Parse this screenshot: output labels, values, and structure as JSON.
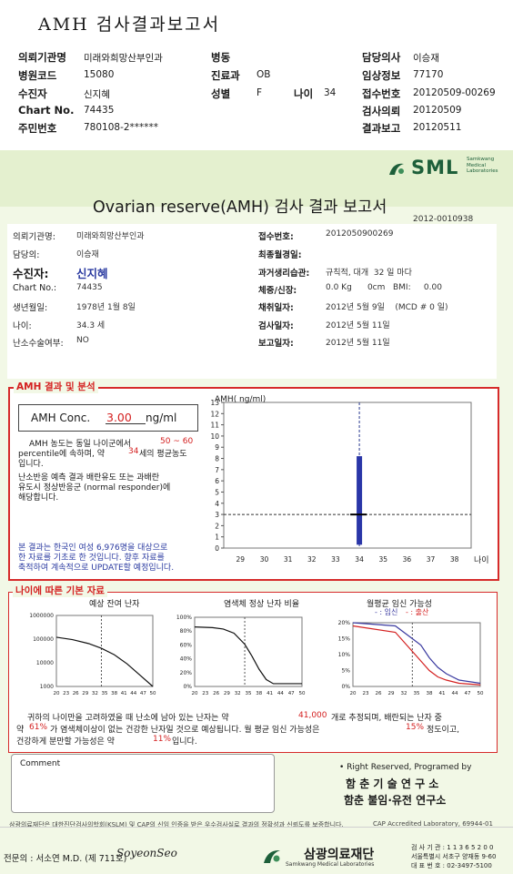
{
  "header": {
    "title": "AMH 검사결과보고서",
    "left": [
      {
        "label": "의뢰기관명",
        "value": "미래와희망산부인과"
      },
      {
        "label": "병원코드",
        "value": "15080"
      },
      {
        "label": "수진자",
        "value": "신지혜"
      },
      {
        "label": "Chart No.",
        "value": "74435"
      },
      {
        "label": "주민번호",
        "value": "780108-2******"
      }
    ],
    "mid": [
      {
        "label": "병동",
        "value": ""
      },
      {
        "label": "진료과",
        "value": "OB"
      },
      {
        "label": "성별",
        "value": "F"
      }
    ],
    "age_label": "나이",
    "age_value": "34",
    "right": [
      {
        "label": "담당의사",
        "value": "이승재"
      },
      {
        "label": "임상정보",
        "value": "77170"
      },
      {
        "label": "접수번호",
        "value": "20120509-00269"
      },
      {
        "label": "검사의뢰",
        "value": "20120509"
      },
      {
        "label": "결과보고",
        "value": "20120511"
      }
    ]
  },
  "report": {
    "logo": "SML",
    "logo_sub": [
      "Samkwang",
      "Medical",
      "Laboratories"
    ],
    "title": "Ovarian reserve(AMH) 검사 결과 보고서",
    "report_no": "2012-0010938",
    "info_left": [
      {
        "label": "의뢰기관명:",
        "value": "미래와희망산부인과"
      },
      {
        "label": "담당의:",
        "value": "이승재"
      },
      {
        "label": "수진자:",
        "value": "신지혜"
      },
      {
        "label": "Chart No.:",
        "value": "74435"
      },
      {
        "label": "생년월일:",
        "value": "1978년 1월 8일"
      },
      {
        "label": "나이:",
        "value": "34.3 세"
      },
      {
        "label": "난소수술여부:",
        "value": "NO"
      }
    ],
    "info_right": [
      {
        "label": "접수번호:",
        "value": "2012050900269"
      },
      {
        "label": "최종월경일:",
        "value": ""
      },
      {
        "label": "과거생리습관:",
        "value": "규칙적, 대개  32 일 마다"
      },
      {
        "label": "체중/신장:",
        "value": "0.0 Kg      0cm   BMI:     0.00"
      },
      {
        "label": "채취일자:",
        "value": "2012년 5월 9일    (MCD # 0 일)"
      },
      {
        "label": "검사일자:",
        "value": "2012년 5월 11일"
      },
      {
        "label": "보고일자:",
        "value": "2012년 5월 11일"
      }
    ],
    "amh": {
      "section": "AMH 결과 및 분석",
      "conc_label": "AMH Conc.",
      "conc_value": "3.00",
      "conc_unit": "ng/ml",
      "text1": [
        "AMH 농도는 동일 나이군에서",
        "50 ~ 60",
        "percentile에 속하며, 약",
        "34",
        "세의 평균농도",
        "입니다."
      ],
      "text2": [
        "난소반응 예측 결과 배란유도 또는 과배란",
        "유도시 정상반응군 (normal responder)에",
        "해당합니다."
      ],
      "text3": [
        "본 결과는 한국인 여성 6,976명을 대상으로",
        "한 자료를 기초로 한 것입니다. 향후 자료를",
        "축적하여 계속적으로 UPDATE할 예정입니다."
      ]
    },
    "age_section": {
      "section": "나이에 따른 기본 자료",
      "chart_titles": [
        "예상 잔여 난자",
        "염색체 정상 난자 비율",
        "월평균 임신 가능성"
      ],
      "legend_a": "- : 임신",
      "legend_b": "- : 출산",
      "summary": {
        "l1a": "귀하의 나이만을 고려하였을 때 난소에 남아 있는 난자는 약",
        "l1b": "41,000",
        "l1c": "개로 추정되며, 배란되는 난자 중",
        "l2a": "약",
        "l2b": "61%",
        "l2c": "가 염색체이상이 없는 건강한 난자일 것으로 예상됩니다. 월 평균 임신 가능성은",
        "l2d": "15%",
        "l2e": "정도이고,",
        "l3a": "건강하게 분만할 가능성은 약",
        "l3b": "11%",
        "l3c": "입니다."
      }
    },
    "comment_label": "Comment",
    "rights": "• Right Reserved, Programed by",
    "lab1": "함 춘 기 술 연 구 소",
    "lab2": "함춘 불임·유전 연구소",
    "footnote": "삼광의료재단은 대한진단검사의학회(KSLM) 및 CAP의 신임 인증을 받은 우수검사실로 결과의 정확성과 신뢰도를 보증합니다.",
    "cap": "CAP Accredited Laboratory, 69944-01",
    "doctor": "전문의 : 서소연 M.D. (제 711호)",
    "signature": "SoyeonSeo",
    "foundation": "삼광의료재단",
    "foundation_en": "Samkwang Medical Laboratories",
    "contact": [
      "검 사 기 관 : 1 1 3 6 5 2 0 0",
      "서울특별시 서초구 양재동 9-60",
      "대 표 번 호 : 02-3497-5100"
    ]
  },
  "chart_data": [
    {
      "type": "scatter",
      "title": "",
      "ylabel": "AMH( ng/ml)",
      "xlabel": "나이",
      "x_ticks": [
        29,
        30,
        31,
        32,
        33,
        34,
        35,
        36,
        37,
        38
      ],
      "y_ticks": [
        0,
        1,
        2,
        3,
        4,
        5,
        6,
        7,
        8,
        9,
        10,
        11,
        12,
        13
      ],
      "xlim": [
        28.3,
        38.7
      ],
      "ylim": [
        0,
        13
      ],
      "point": {
        "x": 34,
        "y": 3.0
      },
      "range_bar": {
        "x": 34,
        "low": 0.3,
        "high": 8.2
      },
      "reference_lines": {
        "x": 34,
        "y": 3.0
      },
      "grid": false
    },
    {
      "type": "line",
      "title": "예상 잔여 난자",
      "x_ticks": [
        20,
        23,
        26,
        29,
        32,
        35,
        38,
        41,
        44,
        47,
        50
      ],
      "y_ticks": [
        "1000",
        "10000",
        "100000",
        "1000000"
      ],
      "log_y": true,
      "x": [
        20,
        25,
        30,
        34,
        38,
        42,
        46,
        50
      ],
      "values": [
        120000,
        95000,
        65000,
        41000,
        22000,
        9000,
        3000,
        1000
      ],
      "marker_x": 34
    },
    {
      "type": "line",
      "title": "염색체 정상 난자 비율",
      "x_ticks": [
        20,
        23,
        26,
        29,
        32,
        35,
        38,
        41,
        44,
        47,
        50
      ],
      "y_ticks": [
        "0%",
        "20%",
        "40%",
        "60%",
        "80%",
        "100%"
      ],
      "x": [
        20,
        25,
        28,
        31,
        34,
        36,
        38,
        40,
        42,
        45,
        50
      ],
      "values": [
        86,
        85,
        83,
        77,
        61,
        44,
        25,
        10,
        4,
        4,
        4
      ],
      "marker_x": 34
    },
    {
      "type": "line",
      "title": "월평균 임신 가능성",
      "x_ticks": [
        20,
        23,
        26,
        29,
        32,
        35,
        38,
        41,
        44,
        47,
        50
      ],
      "y_ticks": [
        "0%",
        "5%",
        "10%",
        "15%",
        "20%"
      ],
      "x": [
        20,
        30,
        34,
        36,
        38,
        40,
        42,
        45,
        50
      ],
      "series": [
        {
          "name": "임신",
          "values": [
            20,
            19,
            15,
            13,
            9,
            6,
            4,
            2,
            1
          ]
        },
        {
          "name": "출산",
          "values": [
            19,
            17,
            11,
            8,
            5,
            3,
            2,
            1,
            0.5
          ]
        }
      ],
      "marker_x": 34,
      "colors": [
        "#3a3aa0",
        "#d42020"
      ]
    }
  ]
}
